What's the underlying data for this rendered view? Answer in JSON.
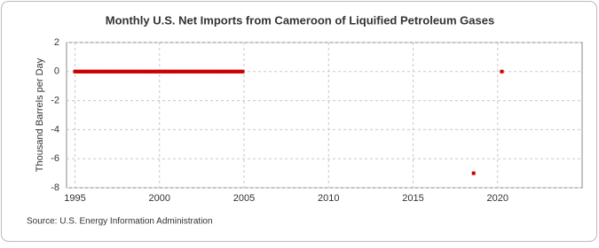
{
  "chart_data": {
    "type": "scatter",
    "title": "Monthly U.S. Net Imports from Cameroon of Liquified Petroleum Gases",
    "y_label": "Thousand Barrels per Day",
    "source": "Source: U.S. Energy Information Administration",
    "x": [
      1995,
      1995.08,
      1995.17,
      1995.25,
      1995.33,
      1995.42,
      1995.5,
      1995.58,
      1995.67,
      1995.75,
      1995.83,
      1995.92,
      1996,
      1996.08,
      1996.17,
      1996.25,
      1996.33,
      1996.42,
      1996.5,
      1996.58,
      1996.67,
      1996.75,
      1996.83,
      1996.92,
      1997,
      1997.08,
      1997.17,
      1997.25,
      1997.33,
      1997.42,
      1997.5,
      1997.58,
      1997.67,
      1997.75,
      1997.83,
      1997.92,
      1998,
      1998.08,
      1998.17,
      1998.25,
      1998.33,
      1998.42,
      1998.5,
      1998.58,
      1998.67,
      1998.75,
      1998.83,
      1998.92,
      1999,
      1999.08,
      1999.17,
      1999.25,
      1999.33,
      1999.42,
      1999.5,
      1999.58,
      1999.67,
      1999.75,
      1999.83,
      1999.92,
      2000,
      2000.08,
      2000.17,
      2000.25,
      2000.33,
      2000.42,
      2000.5,
      2000.58,
      2000.67,
      2000.75,
      2000.83,
      2000.92,
      2001,
      2001.08,
      2001.17,
      2001.25,
      2001.33,
      2001.42,
      2001.5,
      2001.58,
      2001.67,
      2001.75,
      2001.83,
      2001.92,
      2002,
      2002.08,
      2002.17,
      2002.25,
      2002.33,
      2002.42,
      2002.5,
      2002.58,
      2002.67,
      2002.75,
      2002.83,
      2002.92,
      2003,
      2003.08,
      2003.17,
      2003.25,
      2003.33,
      2003.42,
      2003.5,
      2003.58,
      2003.67,
      2003.75,
      2003.83,
      2003.92,
      2004,
      2004.08,
      2004.17,
      2004.25,
      2004.33,
      2004.42,
      2004.5,
      2004.58,
      2004.67,
      2004.75,
      2004.83,
      2004.92,
      2018.58,
      2020.25
    ],
    "values": [
      0,
      0,
      0,
      0,
      0,
      0,
      0,
      0,
      0,
      0,
      0,
      0,
      0,
      0,
      0,
      0,
      0,
      0,
      0,
      0,
      0,
      0,
      0,
      0,
      0,
      0,
      0,
      0,
      0,
      0,
      0,
      0,
      0,
      0,
      0,
      0,
      0,
      0,
      0,
      0,
      0,
      0,
      0,
      0,
      0,
      0,
      0,
      0,
      0,
      0,
      0,
      0,
      0,
      0,
      0,
      0,
      0,
      0,
      0,
      0,
      0,
      0,
      0,
      0,
      0,
      0,
      0,
      0,
      0,
      0,
      0,
      0,
      0,
      0,
      0,
      0,
      0,
      0,
      0,
      0,
      0,
      0,
      0,
      0,
      0,
      0,
      0,
      0,
      0,
      0,
      0,
      0,
      0,
      0,
      0,
      0,
      0,
      0,
      0,
      0,
      0,
      0,
      0,
      0,
      0,
      0,
      0,
      0,
      0,
      0,
      0,
      0,
      0,
      0,
      0,
      0,
      0,
      0,
      0,
      0,
      -7,
      0
    ],
    "color": "#cc0000",
    "xlim": [
      1994.5,
      2025
    ],
    "xticks": [
      1995,
      2000,
      2005,
      2010,
      2015,
      2020
    ],
    "ylim": [
      -8,
      2
    ],
    "yticks": [
      -8,
      -6,
      -4,
      -2,
      0,
      2
    ],
    "grid": true
  }
}
